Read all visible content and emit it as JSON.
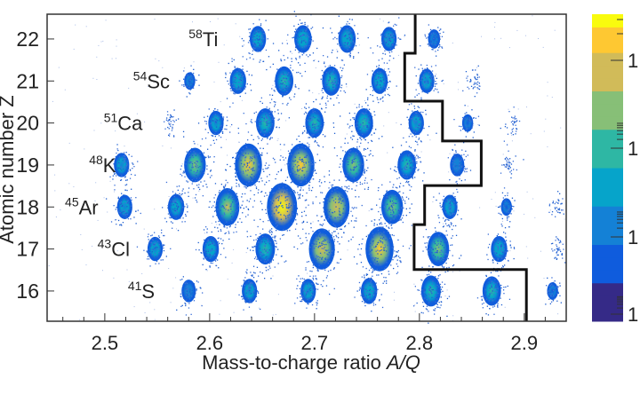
{
  "chart_data": {
    "type": "heatmap",
    "title": "",
    "xlabel": "Mass-to-charge ratio",
    "xlabel_italic": "A/Q",
    "ylabel": "Atomic number Z",
    "xlim": [
      2.445,
      2.94
    ],
    "ylim": [
      15.28,
      22.59
    ],
    "xticks": [
      "2.5",
      "2.6",
      "2.7",
      "2.8",
      "2.9"
    ],
    "yticks": [
      "16",
      "17",
      "18",
      "19",
      "20",
      "21",
      "22"
    ],
    "grid": false,
    "colormap": [
      "#352a87",
      "#0f5cdd",
      "#1481d6",
      "#06a4ca",
      "#2eb7a4",
      "#87bf77",
      "#d1bb59",
      "#fec832",
      "#f9fb0e"
    ],
    "colorbar_labels": [
      "1",
      "1",
      "1",
      "1"
    ],
    "colorbar_scale": "log",
    "peaks": [
      {
        "z": 22,
        "aq": [
          2.646,
          2.689,
          2.731,
          2.771,
          2.814
        ],
        "intensity": [
          0.35,
          0.4,
          0.4,
          0.3,
          0.15
        ]
      },
      {
        "z": 21,
        "aq": [
          2.581,
          2.627,
          2.671,
          2.716,
          2.762,
          2.807,
          2.852
        ],
        "intensity": [
          0.1,
          0.35,
          0.45,
          0.45,
          0.35,
          0.3,
          0.08
        ]
      },
      {
        "z": 20,
        "aq": [
          2.563,
          2.606,
          2.653,
          2.7,
          2.747,
          2.797,
          2.846,
          2.888
        ],
        "intensity": [
          0.06,
          0.3,
          0.45,
          0.45,
          0.45,
          0.3,
          0.1,
          0.04
        ]
      },
      {
        "z": 19,
        "aq": [
          2.516,
          2.586,
          2.637,
          2.687,
          2.737,
          2.788,
          2.836,
          2.886
        ],
        "intensity": [
          0.3,
          0.6,
          0.85,
          0.85,
          0.6,
          0.45,
          0.25,
          0.07
        ]
      },
      {
        "z": 18,
        "aq": [
          2.519,
          2.568,
          2.617,
          2.669,
          2.721,
          2.774,
          2.829,
          2.883,
          2.93
        ],
        "intensity": [
          0.3,
          0.35,
          0.7,
          1.0,
          0.8,
          0.6,
          0.3,
          0.1,
          0.04
        ]
      },
      {
        "z": 17,
        "aq": [
          2.548,
          2.601,
          2.653,
          2.707,
          2.762,
          2.818,
          2.876,
          2.931
        ],
        "intensity": [
          0.3,
          0.35,
          0.5,
          0.8,
          0.9,
          0.6,
          0.35,
          0.07
        ]
      },
      {
        "z": 16,
        "aq": [
          2.58,
          2.638,
          2.694,
          2.752,
          2.811,
          2.869,
          2.927
        ],
        "intensity": [
          0.25,
          0.3,
          0.3,
          0.35,
          0.5,
          0.45,
          0.1
        ]
      }
    ],
    "gate_line": [
      [
        2.796,
        22.59
      ],
      [
        2.796,
        21.66
      ],
      [
        2.786,
        21.66
      ],
      [
        2.786,
        20.52
      ],
      [
        2.822,
        20.52
      ],
      [
        2.822,
        19.57
      ],
      [
        2.859,
        19.57
      ],
      [
        2.859,
        18.51
      ],
      [
        2.805,
        18.51
      ],
      [
        2.805,
        17.58
      ],
      [
        2.795,
        17.58
      ],
      [
        2.795,
        16.51
      ],
      [
        2.902,
        16.51
      ],
      [
        2.902,
        15.28
      ]
    ],
    "annotations": [
      {
        "mass": "58",
        "element": "Ti",
        "aq": 2.58,
        "z": 22
      },
      {
        "mass": "54",
        "element": "Sc",
        "aq": 2.527,
        "z": 21
      },
      {
        "mass": "51",
        "element": "Ca",
        "aq": 2.499,
        "z": 20
      },
      {
        "mass": "48",
        "element": "K",
        "aq": 2.485,
        "z": 19
      },
      {
        "mass": "45",
        "element": "Ar",
        "aq": 2.462,
        "z": 18
      },
      {
        "mass": "43",
        "element": "Cl",
        "aq": 2.493,
        "z": 17
      },
      {
        "mass": "41",
        "element": "S",
        "aq": 2.522,
        "z": 16
      }
    ]
  }
}
